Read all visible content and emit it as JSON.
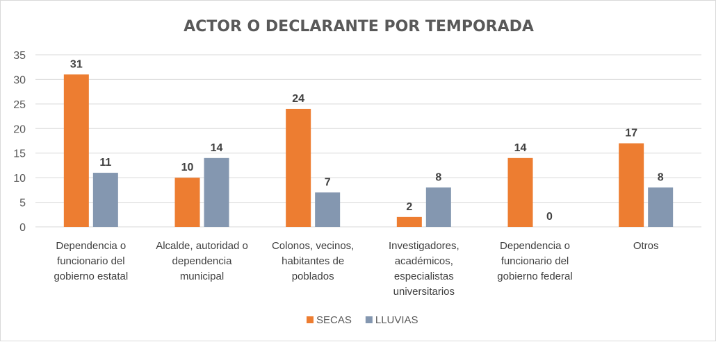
{
  "chart_data": {
    "type": "bar",
    "title": "ACTOR O DECLARANTE POR TEMPORADA",
    "xlabel": "",
    "ylabel": "",
    "ylim": [
      0,
      35
    ],
    "yticks": [
      0,
      5,
      10,
      15,
      20,
      25,
      30,
      35
    ],
    "grid": true,
    "legend_position": "bottom",
    "categories": [
      [
        "Dependencia o",
        "funcionario del",
        "gobierno estatal"
      ],
      [
        "Alcalde, autoridad o",
        "dependencia",
        "municipal"
      ],
      [
        "Colonos, vecinos,",
        "habitantes de",
        "poblados"
      ],
      [
        "Investigadores,",
        "académicos,",
        "especialistas",
        "universitarios"
      ],
      [
        "Dependencia o",
        "funcionario del",
        "gobierno federal"
      ],
      [
        "Otros"
      ]
    ],
    "series": [
      {
        "name": "SECAS",
        "color": "#ED7D31",
        "values": [
          31,
          10,
          24,
          2,
          14,
          17
        ]
      },
      {
        "name": "LLUVIAS",
        "color": "#8497B0",
        "values": [
          11,
          14,
          7,
          8,
          0,
          8
        ]
      }
    ]
  }
}
